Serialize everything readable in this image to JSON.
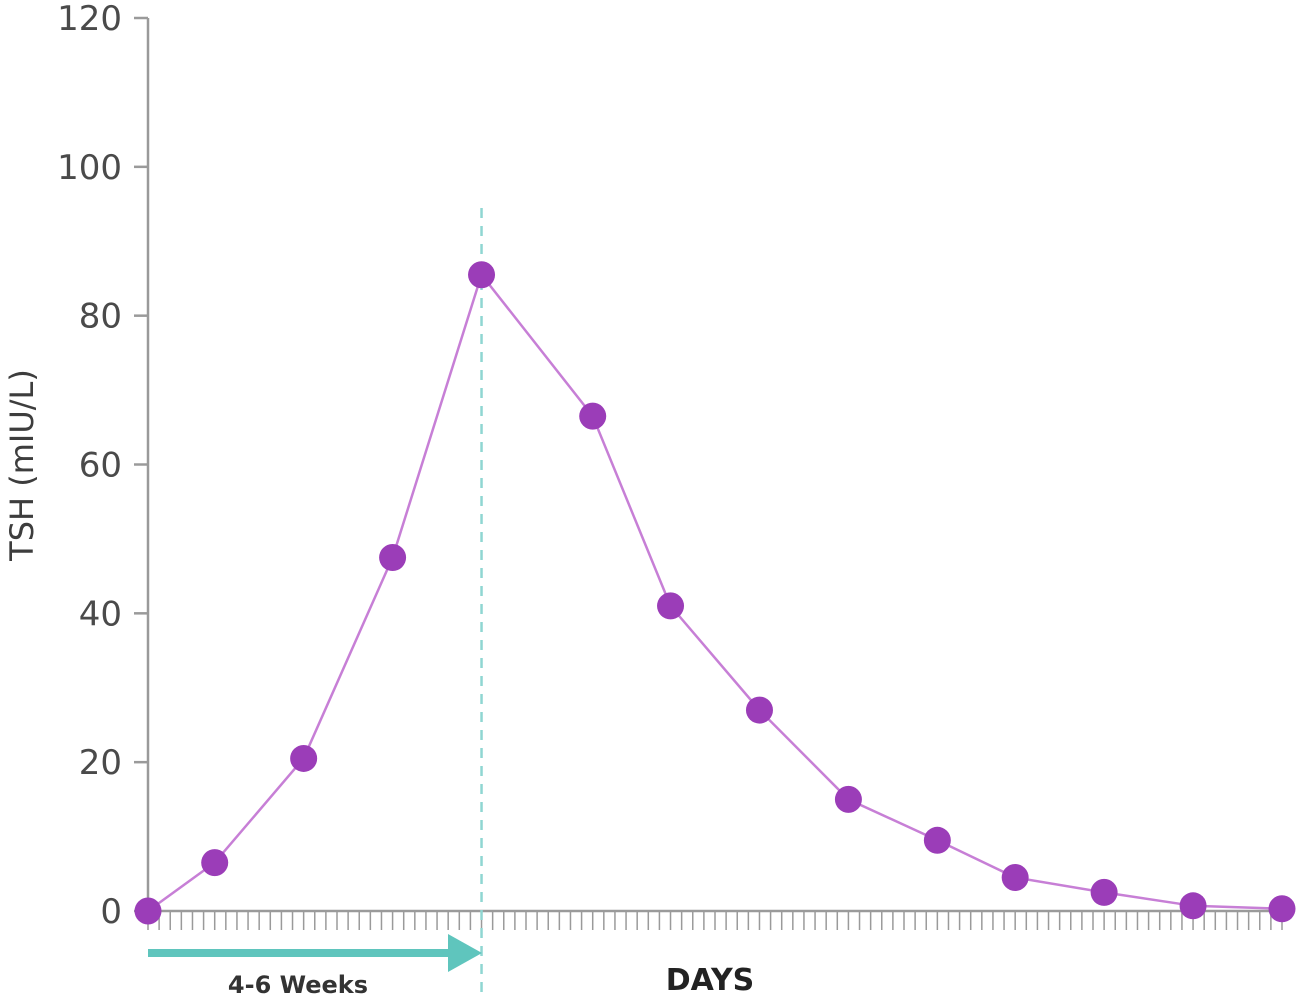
{
  "chart_data": {
    "type": "line",
    "ylabel": "TSH (mIU/L)",
    "xlabel": "DAYS",
    "ylim": [
      0,
      120
    ],
    "yticks": [
      "0",
      "20",
      "40",
      "60",
      "80",
      "100",
      "120"
    ],
    "series": [
      {
        "values": [
          0,
          6.5,
          20.5,
          47.5,
          85.5,
          66.5,
          41,
          27,
          15,
          9.5,
          4.5,
          2.5,
          0.7,
          0.3
        ],
        "positions": [
          0,
          6,
          14,
          22,
          30,
          40,
          47,
          55,
          63,
          71,
          78,
          86,
          94,
          102
        ]
      }
    ],
    "annotations": {
      "arrow_label": "4-6 Weeks",
      "marker_position": 30
    },
    "x_range": [
      0,
      102
    ],
    "grid": false,
    "colors": {
      "line": "#c77fd6",
      "marker": "#9b3db8",
      "reference_line": "#8fd6d2",
      "arrow": "#5fc5bd",
      "axis": "#9a9a9a"
    }
  }
}
